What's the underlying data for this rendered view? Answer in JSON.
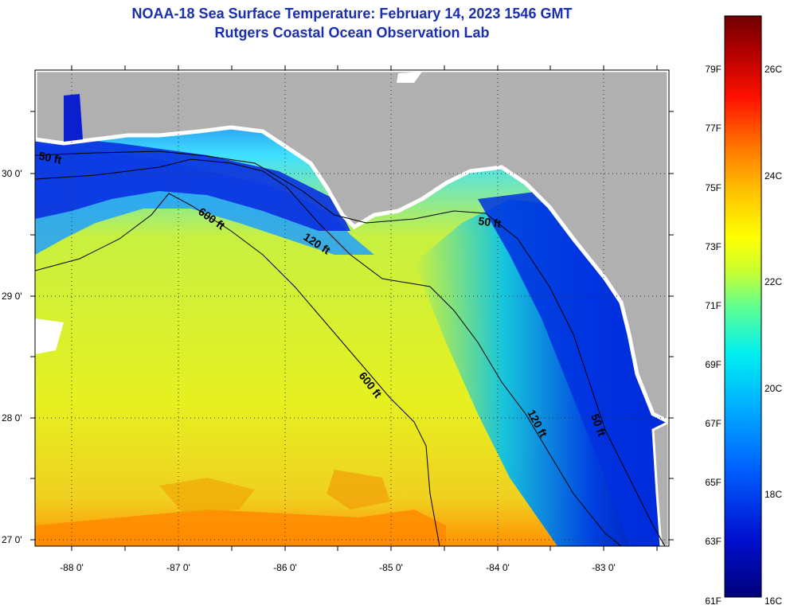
{
  "title_line1": "NOAA-18 Sea Surface Temperature:  February 14, 2023 1546 GMT",
  "title_line2": "Rutgers Coastal Ocean Observation Lab",
  "lat_ticks": [
    {
      "value": 30,
      "label": "30 0'"
    },
    {
      "value": 29,
      "label": "29 0'"
    },
    {
      "value": 28,
      "label": "28 0'"
    },
    {
      "value": 27,
      "label": "27 0'"
    }
  ],
  "lon_ticks": [
    {
      "value": -88,
      "label": "-88 0'"
    },
    {
      "value": -87,
      "label": "-87 0'"
    },
    {
      "value": -86,
      "label": "-86 0'"
    },
    {
      "value": -85,
      "label": "-85 0'"
    },
    {
      "value": -84,
      "label": "-84 0'"
    },
    {
      "value": -83,
      "label": "-83 0'"
    }
  ],
  "contour_labels": [
    {
      "name": "contour-label-50ft-west",
      "text": "50 ft"
    },
    {
      "name": "contour-label-600ft-north",
      "text": "600 ft"
    },
    {
      "name": "contour-label-120ft-north",
      "text": "120 ft"
    },
    {
      "name": "contour-label-50ft-big-bend",
      "text": "50 ft"
    },
    {
      "name": "contour-label-600ft-south",
      "text": "600 ft"
    },
    {
      "name": "contour-label-120ft-south",
      "text": "120 ft"
    },
    {
      "name": "contour-label-50ft-south",
      "text": "50 ft"
    }
  ],
  "colorbar_fahrenheit": [
    "79F",
    "77F",
    "75F",
    "73F",
    "71F",
    "69F",
    "67F",
    "65F",
    "63F",
    "61F"
  ],
  "colorbar_celsius": [
    "26C",
    "24C",
    "22C",
    "20C",
    "18C",
    "16C"
  ],
  "colors": {
    "title": "#1a2fb0",
    "land": "#b0b0b0",
    "coast_ice": "#ffffff",
    "scale": [
      "#00007a",
      "#0010d0",
      "#0060ff",
      "#00b0ff",
      "#00f0f0",
      "#60ff90",
      "#c8ff30",
      "#ffff00",
      "#ffc000",
      "#ff7000",
      "#ff1000",
      "#b00000",
      "#700000"
    ]
  }
}
